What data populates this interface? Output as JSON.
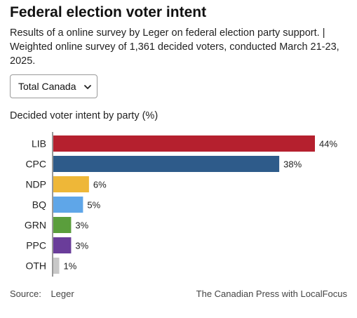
{
  "title": "Federal election voter intent",
  "subtitle": "Results of a online survey by Leger on federal election party support. | Weighted online survey of 1,361 decided voters, conducted March 21-23, 2025.",
  "dropdown": {
    "selected": "Total Canada",
    "icon": "chevron-down-icon"
  },
  "footer": {
    "source_label": "Source:",
    "source_value": "Leger",
    "credit": "The Canadian Press with LocalFocus"
  },
  "chart_data": {
    "type": "bar",
    "orientation": "horizontal",
    "title": "Decided voter intent by party (%)",
    "categories": [
      "LIB",
      "CPC",
      "NDP",
      "BQ",
      "GRN",
      "PPC",
      "OTH"
    ],
    "values": [
      44,
      38,
      6,
      5,
      3,
      3,
      1
    ],
    "value_labels": [
      "44%",
      "38%",
      "6%",
      "5%",
      "3%",
      "3%",
      "1%"
    ],
    "colors": [
      "#b5202e",
      "#2e5b8a",
      "#eeb738",
      "#5fa6e8",
      "#5a9e3c",
      "#6a3d9a",
      "#c8c8c8"
    ],
    "xlim": [
      0,
      44
    ],
    "grid": false,
    "legend": "none"
  }
}
